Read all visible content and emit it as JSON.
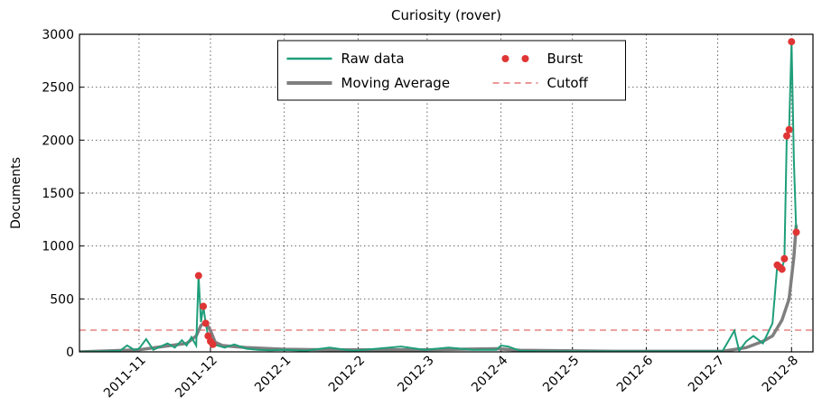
{
  "chart_data": {
    "type": "line",
    "title": "Curiosity (rover)",
    "y_label": "Documents",
    "xlim": [
      -25,
      283
    ],
    "ylim": [
      0,
      3000
    ],
    "xticks": [
      {
        "value": 0,
        "label": "2011-11"
      },
      {
        "value": 30,
        "label": "2011-12"
      },
      {
        "value": 61,
        "label": "2012-1"
      },
      {
        "value": 92,
        "label": "2012-2"
      },
      {
        "value": 121,
        "label": "2012-3"
      },
      {
        "value": 152,
        "label": "2012-4"
      },
      {
        "value": 182,
        "label": "2012-5"
      },
      {
        "value": 213,
        "label": "2012-6"
      },
      {
        "value": 243,
        "label": "2012-7"
      },
      {
        "value": 274,
        "label": "2012-8"
      }
    ],
    "yticks": [
      0,
      500,
      1000,
      1500,
      2000,
      2500,
      3000
    ],
    "grid": true,
    "legend": "upper center",
    "series": [
      {
        "name": "Raw data",
        "color": "#1f9e7a",
        "style": "line",
        "x": [
          -25,
          -15,
          -8,
          -5,
          -2,
          0,
          3,
          6,
          9,
          12,
          15,
          18,
          20,
          22,
          24,
          25,
          26,
          27,
          28,
          29,
          30,
          31,
          33,
          36,
          40,
          45,
          50,
          55,
          61,
          70,
          80,
          90,
          100,
          110,
          120,
          130,
          140,
          150,
          152,
          155,
          160,
          170,
          190,
          210,
          230,
          245,
          250,
          252,
          255,
          258,
          262,
          266,
          268,
          269,
          270,
          271,
          272,
          273,
          274,
          275,
          276
        ],
        "values": [
          0,
          5,
          10,
          60,
          20,
          30,
          120,
          20,
          50,
          80,
          40,
          110,
          60,
          140,
          60,
          720,
          280,
          430,
          270,
          150,
          100,
          70,
          60,
          40,
          70,
          30,
          20,
          15,
          20,
          10,
          40,
          10,
          30,
          50,
          20,
          40,
          20,
          20,
          60,
          50,
          10,
          5,
          5,
          5,
          5,
          5,
          200,
          10,
          100,
          150,
          80,
          270,
          820,
          800,
          780,
          880,
          2040,
          2100,
          2930,
          1800,
          1130
        ]
      },
      {
        "name": "Moving Average",
        "color": "#7f7f7f",
        "style": "thick",
        "x": [
          -25,
          0,
          10,
          20,
          24,
          26,
          28,
          30,
          32,
          35,
          45,
          61,
          80,
          120,
          150,
          160,
          200,
          245,
          255,
          262,
          266,
          270,
          273,
          275,
          276
        ],
        "values": [
          0,
          20,
          50,
          80,
          150,
          250,
          280,
          200,
          90,
          60,
          40,
          25,
          20,
          20,
          30,
          15,
          5,
          5,
          40,
          100,
          150,
          300,
          500,
          900,
          1200
        ]
      },
      {
        "name": "Burst",
        "color": "#e03535",
        "style": "points",
        "x": [
          25,
          27,
          28,
          29,
          30,
          31,
          268,
          269,
          270,
          271,
          272,
          273,
          274,
          276
        ],
        "values": [
          720,
          430,
          270,
          150,
          100,
          70,
          820,
          800,
          780,
          880,
          2040,
          2100,
          2930,
          1130
        ]
      },
      {
        "name": "Cutoff",
        "color": "#e05a5a",
        "style": "hline",
        "y": 205
      }
    ]
  }
}
